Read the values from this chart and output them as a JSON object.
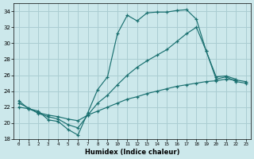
{
  "xlabel": "Humidex (Indice chaleur)",
  "background_color": "#cce8eb",
  "grid_color": "#aacdd2",
  "line_color": "#1a7070",
  "xlim": [
    -0.5,
    23.5
  ],
  "ylim": [
    18,
    35
  ],
  "ytick_values": [
    18,
    20,
    22,
    24,
    26,
    28,
    30,
    32,
    34
  ],
  "line1_x": [
    0,
    1,
    2,
    3,
    4,
    5,
    6,
    7,
    8,
    9,
    10,
    11,
    12,
    13,
    14,
    15,
    16,
    17,
    18,
    19,
    20,
    21,
    22
  ],
  "line1_y": [
    22.8,
    21.8,
    21.5,
    20.4,
    20.2,
    19.2,
    18.5,
    21.3,
    24.2,
    25.8,
    31.2,
    33.5,
    32.8,
    33.8,
    33.9,
    33.9,
    34.1,
    34.2,
    33.0,
    29.0,
    25.8,
    25.9,
    25.5
  ],
  "line2_x": [
    0,
    1,
    2,
    3,
    4,
    5,
    6,
    7,
    8,
    9,
    10,
    11,
    12,
    13,
    14,
    15,
    16,
    17,
    18,
    19,
    20,
    21,
    22,
    23
  ],
  "line2_y": [
    22.5,
    21.9,
    21.2,
    20.8,
    20.5,
    19.8,
    19.4,
    21.0,
    22.5,
    23.5,
    24.8,
    26.0,
    27.0,
    27.8,
    28.5,
    29.2,
    30.2,
    31.2,
    32.0,
    29.0,
    25.5,
    25.8,
    25.2,
    25.0
  ],
  "line3_x": [
    0,
    1,
    2,
    3,
    4,
    5,
    6,
    7,
    8,
    9,
    10,
    11,
    12,
    13,
    14,
    15,
    16,
    17,
    18,
    19,
    20,
    21,
    22,
    23
  ],
  "line3_y": [
    22.0,
    21.8,
    21.3,
    21.0,
    20.8,
    20.5,
    20.3,
    21.0,
    21.5,
    22.0,
    22.5,
    23.0,
    23.3,
    23.7,
    24.0,
    24.3,
    24.6,
    24.8,
    25.0,
    25.2,
    25.3,
    25.5,
    25.4,
    25.2
  ]
}
